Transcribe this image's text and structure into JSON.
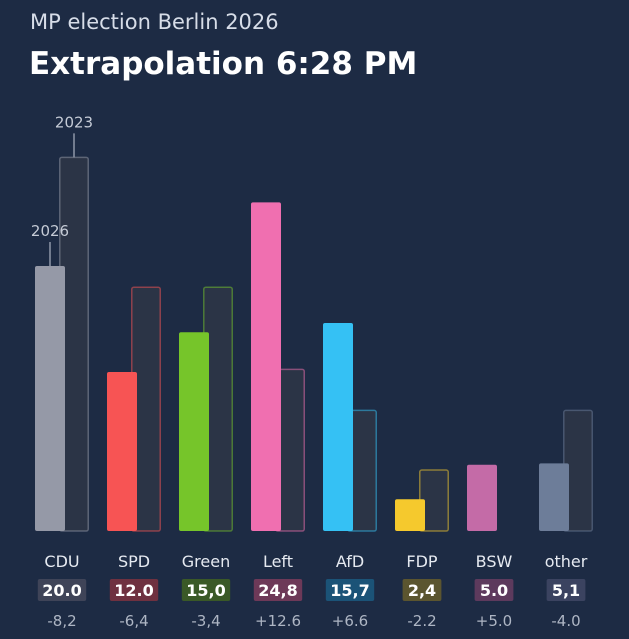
{
  "header": {
    "subtitle": "MP election Berlin 2026",
    "title": "Extrapolation 6:28 PM"
  },
  "chart_data": {
    "type": "bar",
    "title": "Extrapolation 6:28 PM",
    "subtitle": "MP election Berlin 2026",
    "series_labels": [
      "2026",
      "2023"
    ],
    "categories": [
      "CDU",
      "SPD",
      "Green",
      "Left",
      "AfD",
      "FDP",
      "BSW",
      "other"
    ],
    "series": [
      {
        "name": "2026",
        "values": [
          20.0,
          12.0,
          15.0,
          24.8,
          15.7,
          2.4,
          5.0,
          5.1
        ]
      },
      {
        "name": "2023",
        "values": [
          28.2,
          18.4,
          18.4,
          12.2,
          9.1,
          4.6,
          0,
          9.1
        ]
      }
    ],
    "value_labels": [
      "20.0",
      "12.0",
      "15,0",
      "24,8",
      "15,7",
      "2,4",
      "5.0",
      "5,1"
    ],
    "change_labels": [
      "-8,2",
      "-6,4",
      "-3,4",
      "+12.6",
      "+6.6",
      "-2.2",
      "+5.0",
      "-4.0"
    ],
    "colors": [
      "#9599a7",
      "#f75454",
      "#76c52a",
      "#f06fb0",
      "#35c1f4",
      "#f5c92d",
      "#c46ba7",
      "#6d7d99"
    ],
    "badge_colors": [
      "#3f4458",
      "#6f3140",
      "#3a5927",
      "#6d3958",
      "#1b5377",
      "#5b552f",
      "#5d3a5d",
      "#3b4360"
    ],
    "ylim": [
      0,
      30
    ]
  }
}
